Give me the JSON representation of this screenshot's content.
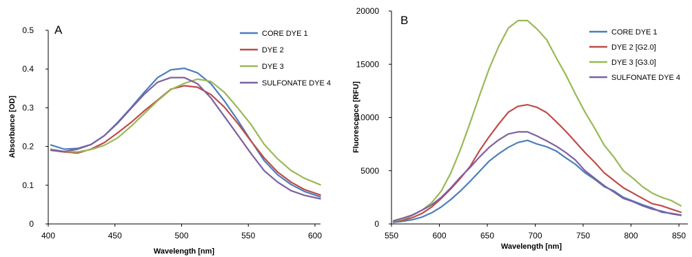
{
  "chart_data": [
    {
      "type": "line",
      "panel_label": "A",
      "xlabel": "Wavelength [nm]",
      "ylabel": "Absorbance [OD]",
      "xlim": [
        400,
        600
      ],
      "ylim": [
        0,
        0.5
      ],
      "xticks": [
        400,
        450,
        500,
        550,
        600
      ],
      "yticks": [
        0,
        0.1,
        0.2,
        0.3,
        0.4,
        0.5
      ],
      "ytick_labels": [
        "0",
        "0.1",
        "0.2",
        "0.3",
        "0.4",
        "0.5"
      ],
      "grid": false,
      "legend_position": "top-right",
      "x": [
        402,
        412,
        422,
        432,
        442,
        452,
        462,
        472,
        482,
        492,
        502,
        512,
        522,
        532,
        542,
        552,
        562,
        572,
        582,
        592,
        604
      ],
      "series": [
        {
          "name": "CORE DYE 1",
          "color": "#4a7ebb",
          "values": [
            0.204,
            0.193,
            0.195,
            0.205,
            0.228,
            0.262,
            0.3,
            0.34,
            0.378,
            0.398,
            0.402,
            0.39,
            0.362,
            0.318,
            0.268,
            0.215,
            0.163,
            0.127,
            0.102,
            0.084,
            0.07
          ]
        },
        {
          "name": "DYE 2",
          "color": "#be4b48",
          "values": [
            0.19,
            0.186,
            0.183,
            0.193,
            0.21,
            0.235,
            0.262,
            0.292,
            0.32,
            0.348,
            0.357,
            0.353,
            0.334,
            0.302,
            0.26,
            0.214,
            0.17,
            0.134,
            0.108,
            0.089,
            0.075
          ]
        },
        {
          "name": "DYE 3",
          "color": "#98b954",
          "values": [
            0.193,
            0.187,
            0.186,
            0.192,
            0.203,
            0.222,
            0.252,
            0.285,
            0.318,
            0.347,
            0.363,
            0.374,
            0.368,
            0.34,
            0.3,
            0.257,
            0.205,
            0.168,
            0.138,
            0.118,
            0.101
          ]
        },
        {
          "name": "SULFONATE DYE 4",
          "color": "#7d60a0",
          "values": [
            0.191,
            0.187,
            0.193,
            0.205,
            0.228,
            0.26,
            0.298,
            0.335,
            0.366,
            0.378,
            0.378,
            0.362,
            0.325,
            0.278,
            0.23,
            0.182,
            0.137,
            0.108,
            0.086,
            0.074,
            0.065
          ]
        }
      ]
    },
    {
      "type": "line",
      "panel_label": "B",
      "xlabel": "Wavelength [nm]",
      "ylabel": "Fluorescence [RFU]",
      "xlim": [
        550,
        855
      ],
      "ylim": [
        0,
        20000
      ],
      "xticks": [
        550,
        600,
        650,
        700,
        750,
        800,
        850
      ],
      "yticks": [
        0,
        5000,
        10000,
        15000,
        20000
      ],
      "ytick_labels": [
        "0",
        "5000",
        "10000",
        "15000",
        "20000"
      ],
      "grid": false,
      "legend_position": "top-right",
      "x": [
        552,
        562,
        572,
        582,
        592,
        602,
        612,
        622,
        632,
        642,
        652,
        662,
        672,
        682,
        692,
        702,
        712,
        722,
        732,
        742,
        752,
        762,
        772,
        782,
        792,
        802,
        812,
        822,
        832,
        842,
        852
      ],
      "series": [
        {
          "name": "CORE DYE 1",
          "color": "#4a7ebb",
          "values": [
            150,
            250,
            400,
            650,
            1050,
            1600,
            2300,
            3100,
            4000,
            4950,
            5900,
            6600,
            7200,
            7650,
            7850,
            7500,
            7250,
            6850,
            6200,
            5600,
            4800,
            4200,
            3500,
            3100,
            2500,
            2150,
            1800,
            1500,
            1100,
            1000,
            850
          ]
        },
        {
          "name": "DYE 2 [G2.0]",
          "color": "#be4b48",
          "values": [
            200,
            350,
            600,
            1000,
            1600,
            2400,
            3300,
            4300,
            5400,
            6900,
            8200,
            9400,
            10500,
            11050,
            11200,
            10950,
            10450,
            9600,
            8700,
            7700,
            6700,
            5800,
            4800,
            4100,
            3400,
            2900,
            2400,
            1900,
            1700,
            1400,
            1100
          ]
        },
        {
          "name": "DYE 3 [G3.0]",
          "color": "#98b954",
          "values": [
            250,
            450,
            800,
            1300,
            2000,
            3100,
            4800,
            7000,
            9500,
            12100,
            14600,
            16700,
            18400,
            19100,
            19100,
            18300,
            17300,
            15600,
            14000,
            12200,
            10500,
            9000,
            7400,
            6300,
            5000,
            4300,
            3500,
            2900,
            2500,
            2200,
            1700
          ]
        },
        {
          "name": "SULFONATE DYE 4",
          "color": "#7d60a0",
          "values": [
            300,
            550,
            850,
            1300,
            1800,
            2500,
            3400,
            4400,
            5300,
            6300,
            7200,
            7900,
            8450,
            8650,
            8650,
            8250,
            7800,
            7300,
            6700,
            6000,
            5000,
            4300,
            3600,
            3000,
            2400,
            2100,
            1700,
            1400,
            1200,
            950,
            800
          ]
        }
      ]
    }
  ]
}
